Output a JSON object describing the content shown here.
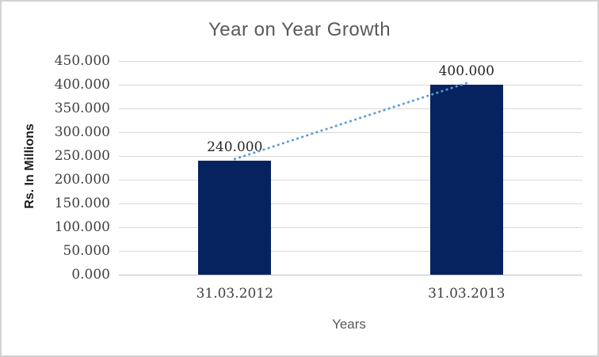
{
  "chart_data": {
    "type": "bar",
    "title": "Year on Year Growth",
    "xlabel": "Years",
    "ylabel": "Rs. In Millions",
    "categories": [
      "31.03.2012",
      "31.03.2013"
    ],
    "values": [
      240,
      400
    ],
    "data_labels": [
      "240.000",
      "400.000"
    ],
    "ylim": [
      0,
      450
    ],
    "ytick_step": 50,
    "ytick_labels": [
      "0.000",
      "50.000",
      "100.000",
      "150.000",
      "200.000",
      "250.000",
      "300.000",
      "350.000",
      "400.000",
      "450.000"
    ],
    "grid": true,
    "legend_position": "none",
    "trendline": {
      "type": "linear",
      "style": "dotted",
      "from_value": 240,
      "to_value": 400
    }
  },
  "colors": {
    "bar": "#06235F",
    "trendline": "#5B9BD5",
    "gridline": "#D9D9D9",
    "axis_line": "#BFBFBF",
    "title_text": "#595959",
    "axis_title_text": "#595959",
    "y_axis_title_text": "#1A1A1A",
    "tick_text": "#404040",
    "data_label_text": "#262626",
    "frame_border": "#D2D2D2",
    "background": "#FFFFFF"
  }
}
